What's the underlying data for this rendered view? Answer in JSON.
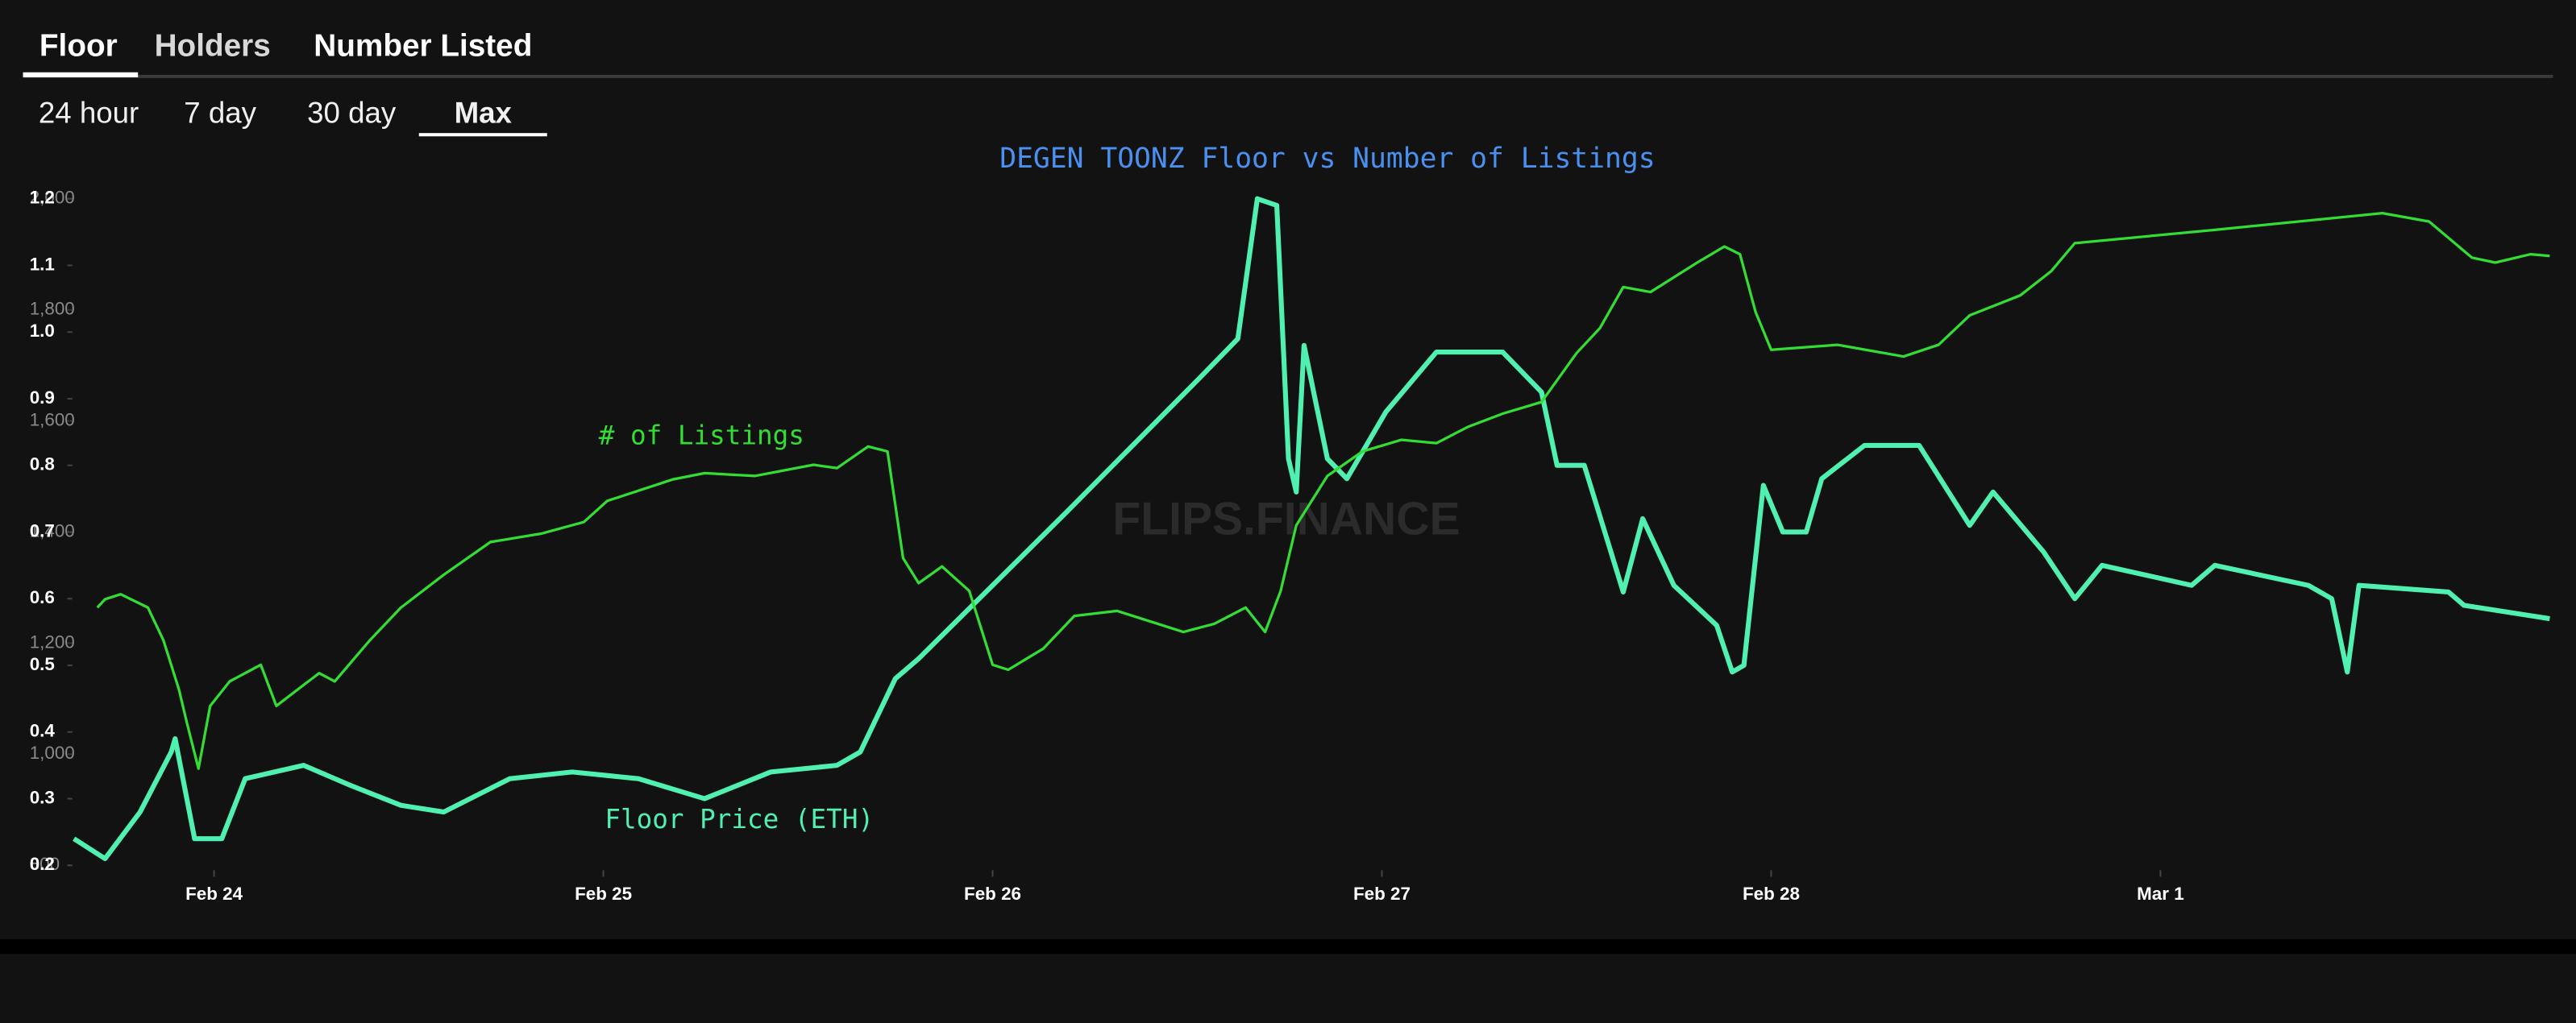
{
  "tabs": [
    "Floor",
    "Holders",
    "Number Listed"
  ],
  "ranges": [
    "24 hour",
    "7 day",
    "30 day",
    "Max"
  ],
  "chart_data": {
    "type": "line",
    "title": "DEGEN TOONZ Floor vs Number of Listings",
    "watermark": "FLIPS.FINANCE",
    "xlim": [
      -0.36,
      6.0
    ],
    "xticks": [
      {
        "value": 0,
        "label": "Feb 24"
      },
      {
        "value": 1,
        "label": "Feb 25"
      },
      {
        "value": 2,
        "label": "Feb 26"
      },
      {
        "value": 3,
        "label": "Feb 27"
      },
      {
        "value": 4,
        "label": "Feb 28"
      },
      {
        "value": 5,
        "label": "Mar 1"
      }
    ],
    "ylim": [
      0.2,
      1.2
    ],
    "yticks": [
      0.2,
      0.3,
      0.4,
      0.5,
      0.6,
      0.7,
      0.8,
      0.9,
      {
        "value": 1.0,
        "label": "1.0"
      },
      1.1,
      1.2
    ],
    "y2lim": [
      800,
      2000
    ],
    "y2ticks": [
      800,
      {
        "value": 1000,
        "label": "1,000"
      },
      {
        "value": 1200,
        "label": "1,200"
      },
      {
        "value": 1400,
        "label": "1,400"
      },
      {
        "value": 1600,
        "label": "1,600"
      },
      {
        "value": 1800,
        "label": "1,800"
      },
      {
        "value": 2000,
        "label": "2,000"
      }
    ],
    "series": [
      {
        "name": "Floor Price (ETH)",
        "color": "#4ff0b0",
        "x": [
          -0.36,
          -0.28,
          -0.19,
          -0.11,
          -0.1,
          -0.05,
          0.02,
          0.08,
          0.23,
          0.35,
          0.48,
          0.59,
          0.76,
          0.92,
          1.09,
          1.26,
          1.43,
          1.6,
          1.66,
          1.75,
          1.81,
          2.19,
          2.53,
          2.63,
          2.68,
          2.73,
          2.76,
          2.78,
          2.8,
          2.86,
          2.91,
          3.01,
          3.14,
          3.31,
          3.41,
          3.45,
          3.52,
          3.62,
          3.67,
          3.75,
          3.86,
          3.9,
          3.93,
          3.98,
          4.03,
          4.09,
          4.13,
          4.24,
          4.38,
          4.51,
          4.57,
          4.7,
          4.78,
          4.85,
          5.08,
          5.14,
          5.38,
          5.44,
          5.48,
          5.51,
          5.74,
          5.78,
          6.0
        ],
        "values": [
          0.24,
          0.21,
          0.28,
          0.37,
          0.39,
          0.24,
          0.24,
          0.33,
          0.35,
          0.32,
          0.29,
          0.28,
          0.33,
          0.34,
          0.33,
          0.3,
          0.34,
          0.35,
          0.37,
          0.48,
          0.51,
          0.73,
          0.93,
          0.99,
          1.2,
          1.19,
          0.81,
          0.76,
          0.98,
          0.81,
          0.78,
          0.88,
          0.97,
          0.97,
          0.91,
          0.8,
          0.8,
          0.61,
          0.72,
          0.62,
          0.56,
          0.49,
          0.5,
          0.77,
          0.7,
          0.7,
          0.78,
          0.83,
          0.83,
          0.71,
          0.76,
          0.67,
          0.6,
          0.65,
          0.62,
          0.65,
          0.62,
          0.6,
          0.49,
          0.62,
          0.61,
          0.59,
          0.57
        ]
      },
      {
        "name": "# of Listings",
        "color": "#33dd33",
        "axis": "y2",
        "x": [
          -0.3,
          -0.28,
          -0.24,
          -0.17,
          -0.13,
          -0.09,
          -0.07,
          -0.04,
          -0.01,
          0.04,
          0.12,
          0.16,
          0.27,
          0.31,
          0.4,
          0.48,
          0.59,
          0.71,
          0.84,
          0.95,
          1.01,
          1.18,
          1.26,
          1.39,
          1.54,
          1.6,
          1.68,
          1.73,
          1.77,
          1.81,
          1.87,
          1.94,
          2.0,
          2.04,
          2.13,
          2.21,
          2.32,
          2.49,
          2.57,
          2.65,
          2.7,
          2.74,
          2.78,
          2.86,
          2.95,
          3.05,
          3.14,
          3.22,
          3.31,
          3.41,
          3.5,
          3.56,
          3.62,
          3.69,
          3.81,
          3.88,
          3.92,
          3.96,
          4.0,
          4.17,
          4.34,
          4.43,
          4.51,
          4.64,
          4.72,
          4.78,
          5.14,
          5.57,
          5.69,
          5.8,
          5.86,
          5.95,
          6.0
        ],
        "values": [
          1264,
          1279,
          1288,
          1264,
          1205,
          1116,
          1057,
          974,
          1087,
          1131,
          1161,
          1087,
          1146,
          1131,
          1205,
          1264,
          1323,
          1382,
          1397,
          1418,
          1456,
          1495,
          1506,
          1501,
          1521,
          1515,
          1554,
          1545,
          1353,
          1308,
          1338,
          1294,
          1161,
          1152,
          1190,
          1249,
          1258,
          1220,
          1235,
          1264,
          1220,
          1294,
          1412,
          1501,
          1545,
          1566,
          1560,
          1589,
          1613,
          1634,
          1722,
          1767,
          1841,
          1832,
          1885,
          1914,
          1900,
          1796,
          1728,
          1737,
          1716,
          1737,
          1790,
          1826,
          1870,
          1920,
          1944,
          1974,
          1959,
          1894,
          1885,
          1900,
          1897
        ]
      }
    ]
  }
}
